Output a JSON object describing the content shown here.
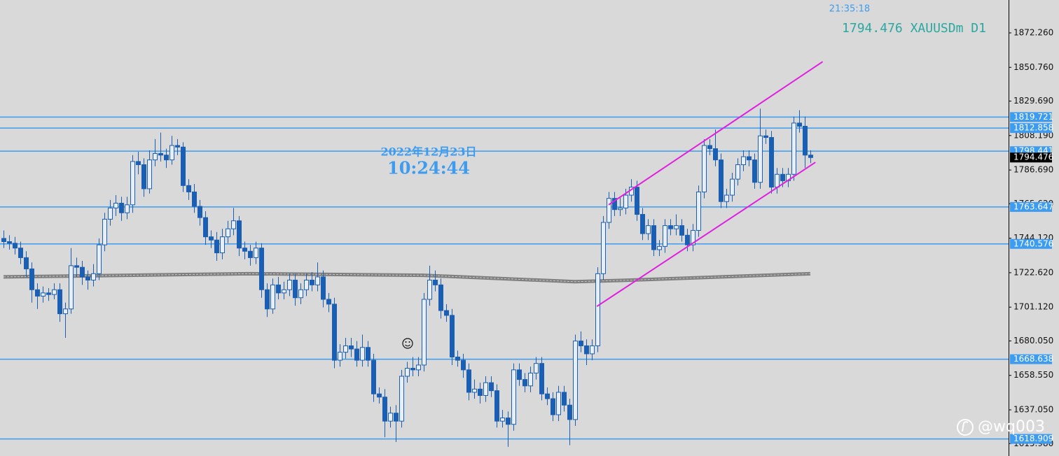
{
  "chart_data": {
    "type": "candlestick",
    "time_text": "21:35:18",
    "symbol_text": "1794.476 XAUUSDm D1",
    "date_text": "2022年12月23日",
    "clock_text": "10:24:44",
    "watermark": "@wq003",
    "up_color": "#1a5fb4",
    "down_color": "#1a5fb4",
    "level_color": "#3d9cf0",
    "channel_color": "#e020e0",
    "ma_color": "#7f7f7f",
    "xlim": [
      -0.625,
      179.375
    ],
    "ylim": [
      1608.25,
      1892.77
    ],
    "yticks": [
      {
        "value": 1872.26,
        "label": "1872.260"
      },
      {
        "value": 1850.76,
        "label": "1850.760"
      },
      {
        "value": 1829.69,
        "label": "1829.690"
      },
      {
        "value": 1808.19,
        "label": "1808.190"
      },
      {
        "value": 1786.69,
        "label": "1786.690"
      },
      {
        "value": 1765.62,
        "label": "1765.620"
      },
      {
        "value": 1744.12,
        "label": "1744.120"
      },
      {
        "value": 1722.62,
        "label": "1722.620"
      },
      {
        "value": 1701.12,
        "label": "1701.120"
      },
      {
        "value": 1680.05,
        "label": "1680.050"
      },
      {
        "value": 1658.55,
        "label": "1658.550"
      },
      {
        "value": 1637.05,
        "label": "1637.050"
      },
      {
        "value": 1615.98,
        "label": "1615.980"
      }
    ],
    "levels": [
      1819.721,
      1812.858,
      1798.441,
      1763.647,
      1740.576,
      1668.638,
      1618.909
    ],
    "current_price": 1794.476,
    "ma": {
      "x": [
        0,
        44,
        75,
        102,
        112,
        144
      ],
      "values": [
        1720,
        1722,
        1721,
        1717,
        1718,
        1722
      ]
    },
    "channels": [
      {
        "x": [
          108,
          146.2
        ],
        "y": [
          1765,
          1854.3
        ]
      },
      {
        "x": [
          105.9,
          144.9
        ],
        "y": [
          1701.6,
          1791.5
        ]
      }
    ],
    "candles": [
      [
        1744,
        1749,
        1738,
        1742
      ],
      [
        1742,
        1746,
        1737,
        1741
      ],
      [
        1741,
        1745,
        1734,
        1738
      ],
      [
        1738,
        1742,
        1728,
        1732
      ],
      [
        1732,
        1736,
        1720,
        1725
      ],
      [
        1725,
        1729,
        1704,
        1712
      ],
      [
        1712,
        1716,
        1700,
        1708
      ],
      [
        1708,
        1714,
        1704,
        1710
      ],
      [
        1710,
        1713,
        1705,
        1709
      ],
      [
        1709,
        1716,
        1706,
        1712
      ],
      [
        1712,
        1716,
        1692,
        1697
      ],
      [
        1697,
        1704,
        1682,
        1700
      ],
      [
        1700,
        1738,
        1697,
        1727
      ],
      [
        1727,
        1732,
        1720,
        1726
      ],
      [
        1726,
        1730,
        1715,
        1720
      ],
      [
        1720,
        1724,
        1712,
        1718
      ],
      [
        1718,
        1728,
        1714,
        1722
      ],
      [
        1722,
        1744,
        1718,
        1740
      ],
      [
        1740,
        1760,
        1736,
        1756
      ],
      [
        1756,
        1768,
        1752,
        1763
      ],
      [
        1763,
        1771,
        1758,
        1766
      ],
      [
        1766,
        1770,
        1755,
        1760
      ],
      [
        1760,
        1770,
        1756,
        1765
      ],
      [
        1765,
        1796,
        1760,
        1792
      ],
      [
        1792,
        1798,
        1784,
        1790
      ],
      [
        1790,
        1794,
        1770,
        1775
      ],
      [
        1775,
        1799,
        1772,
        1793
      ],
      [
        1793,
        1806,
        1789,
        1797
      ],
      [
        1797,
        1810,
        1792,
        1796
      ],
      [
        1796,
        1800,
        1788,
        1793
      ],
      [
        1793,
        1808,
        1790,
        1802
      ],
      [
        1802,
        1806,
        1796,
        1801
      ],
      [
        1801,
        1804,
        1773,
        1777
      ],
      [
        1777,
        1781,
        1768,
        1773
      ],
      [
        1773,
        1778,
        1760,
        1764
      ],
      [
        1764,
        1768,
        1752,
        1757
      ],
      [
        1757,
        1761,
        1740,
        1745
      ],
      [
        1745,
        1749,
        1738,
        1743
      ],
      [
        1743,
        1748,
        1730,
        1735
      ],
      [
        1735,
        1750,
        1731,
        1745
      ],
      [
        1745,
        1755,
        1741,
        1750
      ],
      [
        1750,
        1763,
        1746,
        1755
      ],
      [
        1755,
        1758,
        1733,
        1738
      ],
      [
        1738,
        1742,
        1731,
        1736
      ],
      [
        1736,
        1740,
        1727,
        1732
      ],
      [
        1732,
        1742,
        1728,
        1738
      ],
      [
        1738,
        1741,
        1707,
        1712
      ],
      [
        1712,
        1716,
        1695,
        1700
      ],
      [
        1700,
        1719,
        1697,
        1715
      ],
      [
        1715,
        1720,
        1706,
        1710
      ],
      [
        1710,
        1717,
        1706,
        1712
      ],
      [
        1712,
        1722,
        1708,
        1718
      ],
      [
        1718,
        1722,
        1702,
        1707
      ],
      [
        1707,
        1716,
        1703,
        1712
      ],
      [
        1712,
        1722,
        1708,
        1718
      ],
      [
        1718,
        1723,
        1711,
        1715
      ],
      [
        1715,
        1729,
        1711,
        1720
      ],
      [
        1720,
        1724,
        1701,
        1706
      ],
      [
        1706,
        1710,
        1698,
        1703
      ],
      [
        1703,
        1707,
        1663,
        1668
      ],
      [
        1668,
        1678,
        1664,
        1673
      ],
      [
        1673,
        1682,
        1669,
        1677
      ],
      [
        1677,
        1682,
        1670,
        1675
      ],
      [
        1675,
        1680,
        1664,
        1668
      ],
      [
        1668,
        1684,
        1664,
        1676
      ],
      [
        1676,
        1680,
        1664,
        1668
      ],
      [
        1668,
        1672,
        1642,
        1647
      ],
      [
        1647,
        1651,
        1641,
        1645
      ],
      [
        1645,
        1650,
        1620,
        1630
      ],
      [
        1630,
        1639,
        1626,
        1635
      ],
      [
        1635,
        1640,
        1617,
        1630
      ],
      [
        1630,
        1662,
        1626,
        1658
      ],
      [
        1658,
        1667,
        1654,
        1663
      ],
      [
        1663,
        1670,
        1658,
        1662
      ],
      [
        1662,
        1670,
        1658,
        1665
      ],
      [
        1665,
        1710,
        1661,
        1706
      ],
      [
        1706,
        1727,
        1702,
        1718
      ],
      [
        1718,
        1724,
        1711,
        1715
      ],
      [
        1715,
        1719,
        1694,
        1699
      ],
      [
        1699,
        1703,
        1692,
        1696
      ],
      [
        1696,
        1700,
        1665,
        1670
      ],
      [
        1670,
        1674,
        1664,
        1668
      ],
      [
        1668,
        1672,
        1657,
        1662
      ],
      [
        1662,
        1666,
        1643,
        1648
      ],
      [
        1648,
        1656,
        1644,
        1650
      ],
      [
        1650,
        1654,
        1641,
        1646
      ],
      [
        1646,
        1658,
        1642,
        1654
      ],
      [
        1654,
        1658,
        1645,
        1649
      ],
      [
        1649,
        1653,
        1626,
        1630
      ],
      [
        1630,
        1637,
        1626,
        1632
      ],
      [
        1632,
        1636,
        1614,
        1628
      ],
      [
        1628,
        1666,
        1624,
        1662
      ],
      [
        1662,
        1666,
        1652,
        1656
      ],
      [
        1656,
        1660,
        1648,
        1652
      ],
      [
        1652,
        1664,
        1648,
        1660
      ],
      [
        1660,
        1670,
        1656,
        1666
      ],
      [
        1666,
        1670,
        1643,
        1647
      ],
      [
        1647,
        1651,
        1640,
        1644
      ],
      [
        1644,
        1648,
        1630,
        1634
      ],
      [
        1634,
        1652,
        1630,
        1648
      ],
      [
        1648,
        1652,
        1636,
        1640
      ],
      [
        1640,
        1644,
        1615,
        1631
      ],
      [
        1631,
        1684,
        1627,
        1680
      ],
      [
        1680,
        1686,
        1673,
        1677
      ],
      [
        1677,
        1681,
        1665,
        1672
      ],
      [
        1672,
        1681,
        1668,
        1677
      ],
      [
        1677,
        1726,
        1673,
        1722
      ],
      [
        1722,
        1758,
        1718,
        1754
      ],
      [
        1754,
        1773,
        1750,
        1769
      ],
      [
        1769,
        1773,
        1758,
        1762
      ],
      [
        1762,
        1770,
        1758,
        1763
      ],
      [
        1763,
        1775,
        1759,
        1771
      ],
      [
        1771,
        1781,
        1767,
        1776
      ],
      [
        1776,
        1780,
        1755,
        1759
      ],
      [
        1759,
        1763,
        1743,
        1747
      ],
      [
        1747,
        1756,
        1743,
        1752
      ],
      [
        1752,
        1756,
        1733,
        1737
      ],
      [
        1737,
        1743,
        1733,
        1739
      ],
      [
        1739,
        1756,
        1735,
        1752
      ],
      [
        1752,
        1756,
        1746,
        1750
      ],
      [
        1750,
        1759,
        1746,
        1752
      ],
      [
        1752,
        1756,
        1742,
        1746
      ],
      [
        1746,
        1750,
        1736,
        1740
      ],
      [
        1740,
        1753,
        1736,
        1749
      ],
      [
        1749,
        1777,
        1745,
        1773
      ],
      [
        1773,
        1806,
        1769,
        1802
      ],
      [
        1802,
        1806,
        1796,
        1800
      ],
      [
        1800,
        1812,
        1789,
        1793
      ],
      [
        1793,
        1797,
        1763,
        1767
      ],
      [
        1767,
        1775,
        1763,
        1771
      ],
      [
        1771,
        1785,
        1767,
        1781
      ],
      [
        1781,
        1794,
        1777,
        1790
      ],
      [
        1790,
        1799,
        1786,
        1795
      ],
      [
        1795,
        1799,
        1789,
        1793
      ],
      [
        1793,
        1797,
        1775,
        1779
      ],
      [
        1779,
        1825,
        1775,
        1808
      ],
      [
        1808,
        1812,
        1803,
        1807
      ],
      [
        1807,
        1811,
        1772,
        1776
      ],
      [
        1776,
        1788,
        1772,
        1784
      ],
      [
        1784,
        1788,
        1776,
        1780
      ],
      [
        1780,
        1788,
        1776,
        1784
      ],
      [
        1784,
        1820,
        1780,
        1816
      ],
      [
        1816,
        1824,
        1810,
        1814
      ],
      [
        1814,
        1820,
        1788,
        1796
      ],
      [
        1796,
        1799,
        1791,
        1794.476
      ]
    ]
  }
}
